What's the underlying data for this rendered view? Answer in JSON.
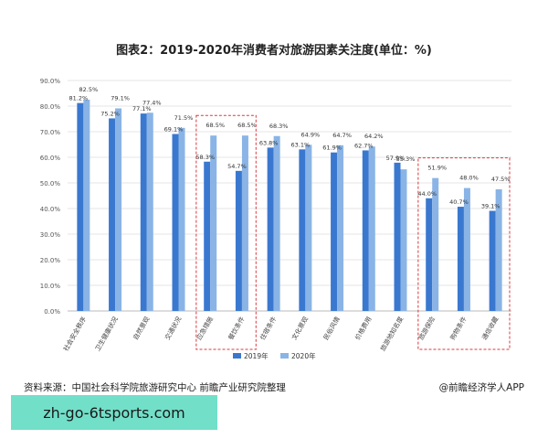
{
  "chart_title": "图表2：2019-2020年消费者对旅游因素关注度(单位：%)",
  "source_text": "资料来源：中国社会科学院旅游研究中心 前瞻产业研究院整理",
  "credit_text": "@前瞻经济学人APP",
  "banner_text": "zh-go-6tsports.com",
  "colors": {
    "s2019": "#3a78d0",
    "s2020": "#8ab4e6",
    "highlight": "#d9383f",
    "grid": "#e6e6e6"
  },
  "chart_data": {
    "type": "bar",
    "categories": [
      "社会安全秩序",
      "卫生健康状况",
      "自然景观",
      "交通状况",
      "应急措施",
      "餐饮条件",
      "住宿条件",
      "文化景观",
      "民俗风情",
      "价格费用",
      "旅游地知名度",
      "旅游保险",
      "购物条件",
      "通信收藏"
    ],
    "series": [
      {
        "name": "2019年",
        "values": [
          81.2,
          75.2,
          77.1,
          69.1,
          58.3,
          54.7,
          63.8,
          63.1,
          61.9,
          62.7,
          57.9,
          44.0,
          40.7,
          39.1
        ],
        "labels": [
          "81.2%",
          "75.2%",
          "77.1%",
          "69.1%",
          "58.3%",
          "54.7%",
          "63.8%",
          "63.1%",
          "61.9%",
          "62.7%",
          "57.9%",
          "44.0%",
          "40.7%",
          "39.1%"
        ]
      },
      {
        "name": "2020年",
        "values": [
          82.5,
          79.1,
          77.4,
          71.5,
          68.5,
          68.5,
          68.3,
          64.9,
          64.7,
          64.2,
          55.3,
          51.9,
          48.0,
          47.5
        ],
        "labels": [
          "82.5%",
          "79.1%",
          "77.4%",
          "71.5%",
          "68.5%",
          "68.5%",
          "68.3%",
          "64.9%",
          "64.7%",
          "64.2%",
          "55.3%",
          "51.9%",
          "48.0%",
          "47.5%"
        ]
      }
    ],
    "yticks": [
      "0.0%",
      "10.0%",
      "20.0%",
      "30.0%",
      "40.0%",
      "50.0%",
      "60.0%",
      "70.0%",
      "80.0%",
      "90.0%"
    ],
    "ylim": [
      0,
      90
    ],
    "grid": true,
    "legend_position": "bottom-center",
    "highlighted_categories": [
      "应急措施",
      "餐饮条件",
      "旅游保险",
      "购物条件",
      "通信收藏"
    ]
  }
}
